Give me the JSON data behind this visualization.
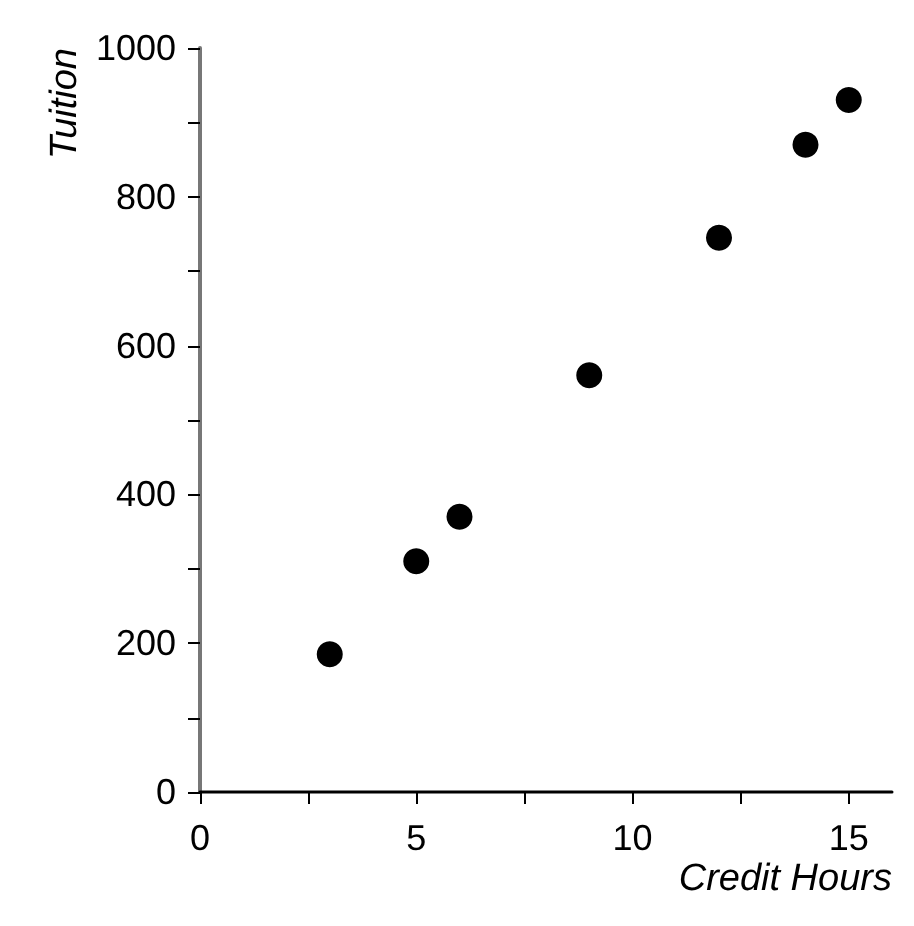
{
  "chart_data": {
    "type": "scatter",
    "xlabel": "Credit Hours",
    "ylabel": "Tuition",
    "x": [
      3,
      5,
      6,
      9,
      12,
      14,
      15
    ],
    "series": [
      {
        "color": "#000000",
        "values": [
          185,
          310,
          370,
          560,
          745,
          870,
          930
        ]
      }
    ],
    "xlim": [
      0,
      16
    ],
    "ylim": [
      0,
      1000
    ],
    "xticks": [
      0,
      {
        "value": 2.5,
        "label": null
      },
      5,
      {
        "value": 7.5,
        "label": null
      },
      10,
      {
        "value": 12.5,
        "label": null
      },
      15
    ],
    "yticks": [
      0,
      {
        "value": 100,
        "label": null
      },
      200,
      {
        "value": 300,
        "label": null
      },
      400,
      {
        "value": 500,
        "label": null
      },
      600,
      {
        "value": 700,
        "label": null
      },
      800,
      {
        "value": 900,
        "label": null
      },
      1000
    ],
    "marker": "circle",
    "grid": false
  }
}
